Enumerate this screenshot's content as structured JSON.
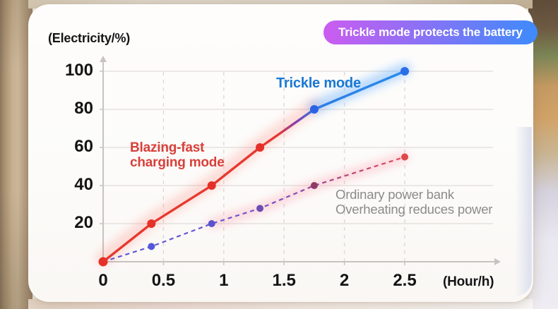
{
  "badge": {
    "label": "Trickle mode protects the battery",
    "gradient_from": "#cb5cf0",
    "gradient_to": "#3e8bfb",
    "text_color": "#ffffff"
  },
  "labels": {
    "y_axis_title": "(Electricity/%)",
    "x_axis_title": "(Hour/h)",
    "trickle": "Trickle mode",
    "fast_line1": "Blazing-fast",
    "fast_line2": "charging mode",
    "ordinary_line1": "Ordinary power bank",
    "ordinary_line2": "Overheating reduces power"
  },
  "colors": {
    "trickle_text": "#1a78d2",
    "fast_text": "#d8403a",
    "ordinary_text": "#8b8b8b",
    "grid_h": "#e5e2de",
    "grid_v": "#dcd9d5",
    "axis": "#c7c4c0",
    "red_glow": "#ff5a4d",
    "blue_glow": "#4da2ff",
    "pink_glow": "#ff8296"
  },
  "chart_data": {
    "type": "line",
    "title": "Trickle mode protects the battery",
    "xlabel": "(Hour/h)",
    "ylabel": "(Electricity/%)",
    "x_ticks": [
      0,
      0.5,
      1,
      1.5,
      2,
      2.5
    ],
    "x_tick_labels": [
      "0",
      "0.5",
      "1",
      "1.5",
      "2",
      "2.5"
    ],
    "y_ticks": [
      20,
      40,
      60,
      80,
      100
    ],
    "y_tick_labels": [
      "20",
      "40",
      "60",
      "80",
      "100"
    ],
    "xlim": [
      0,
      3.2
    ],
    "ylim": [
      0,
      110
    ],
    "grid": {
      "horizontal": "solid",
      "vertical": "dashed"
    },
    "legend_position": "inline-annotations",
    "series": [
      {
        "name": "Blazing-fast charging mode / Trickle mode",
        "style": "solid",
        "x": [
          0,
          0.4,
          0.9,
          1.3,
          1.75,
          2.5
        ],
        "y": [
          0,
          20,
          40,
          60,
          80,
          100
        ],
        "color_stops": [
          [
            "0%",
            "#e7382e"
          ],
          [
            "58%",
            "#e7382e"
          ],
          [
            "64%",
            "#8a3bb0"
          ],
          [
            "70%",
            "#2e7ce0"
          ],
          [
            "100%",
            "#2a8bf0"
          ]
        ],
        "point_colors": [
          "#e43028",
          "#e43028",
          "#e43028",
          "#e43028",
          "#2b63e3",
          "#2b6de8"
        ]
      },
      {
        "name": "Ordinary power bank",
        "style": "dashed",
        "x": [
          0,
          0.4,
          0.9,
          1.3,
          1.75,
          2.5
        ],
        "y": [
          0,
          8,
          20,
          28,
          40,
          55
        ],
        "color_stops": [
          [
            "0%",
            "#5a5ad8"
          ],
          [
            "45%",
            "#6b55cf"
          ],
          [
            "62%",
            "#7c4fbe"
          ],
          [
            "78%",
            "#b0447f"
          ],
          [
            "100%",
            "#e04854"
          ]
        ],
        "point_colors": [
          null,
          "#5557d8",
          "#5a53cf",
          "#6b4db4",
          "#8f3a66",
          "#e04848"
        ]
      }
    ],
    "annotations": [
      {
        "text": "Trickle mode",
        "color": "#1a78d2"
      },
      {
        "text": "Blazing-fast charging mode",
        "color": "#d8403a"
      },
      {
        "text": "Ordinary power bank Overheating reduces power",
        "color": "#8b8b8b"
      }
    ]
  }
}
